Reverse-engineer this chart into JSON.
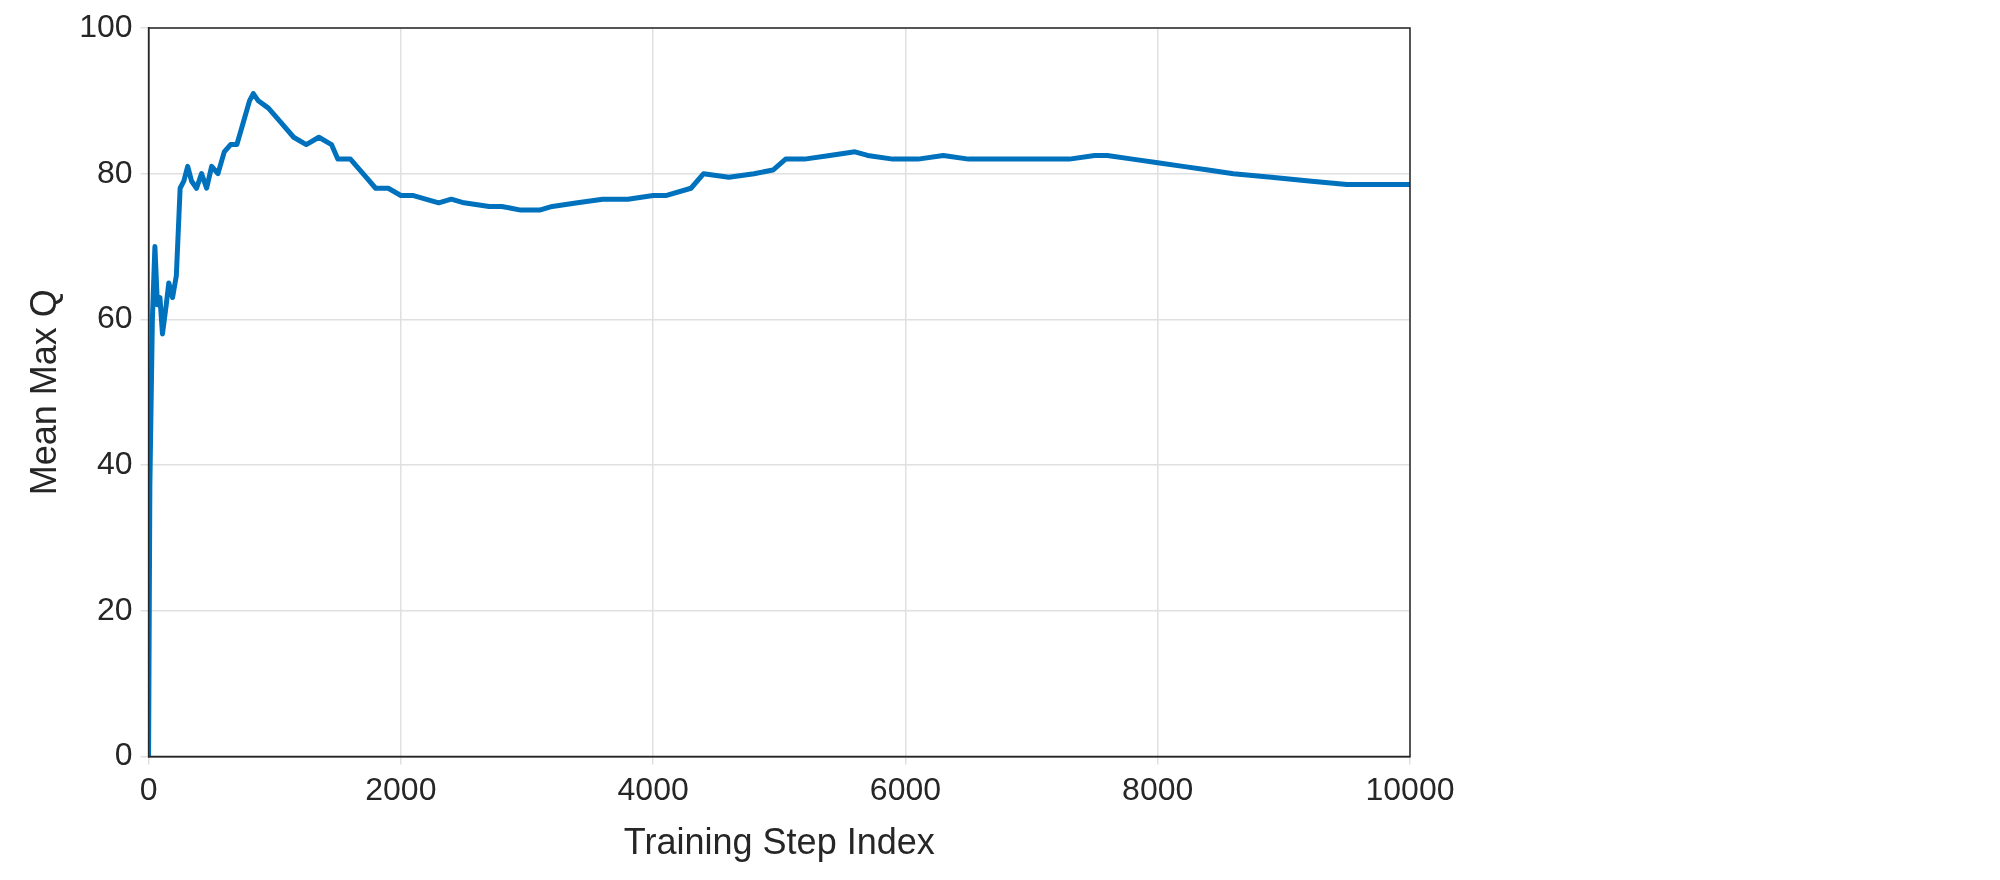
{
  "chart_data": {
    "type": "line",
    "xlabel": "Training Step Index",
    "ylabel": "Mean Max Q",
    "xlim": [
      0,
      10000
    ],
    "xticks": [
      0,
      2000,
      4000,
      6000,
      8000,
      10000
    ],
    "ylim": [
      0,
      100
    ],
    "yticks": [
      0,
      20,
      40,
      60,
      80,
      100
    ],
    "grid": true,
    "line_style": "solid",
    "marker": "none",
    "series": [
      {
        "color": "#0072bd",
        "x": [
          0,
          10,
          30,
          50,
          70,
          90,
          110,
          140,
          160,
          190,
          220,
          250,
          280,
          310,
          340,
          380,
          420,
          460,
          500,
          550,
          600,
          650,
          700,
          750,
          800,
          830,
          870,
          950,
          1050,
          1150,
          1250,
          1350,
          1450,
          1500,
          1600,
          1700,
          1800,
          1900,
          2000,
          2100,
          2300,
          2400,
          2500,
          2700,
          2800,
          2950,
          3100,
          3200,
          3400,
          3600,
          3800,
          4000,
          4100,
          4300,
          4400,
          4600,
          4800,
          4950,
          5050,
          5200,
          5400,
          5600,
          5700,
          5900,
          6100,
          6300,
          6500,
          6700,
          6900,
          7100,
          7300,
          7500,
          7600,
          7800,
          8000,
          8200,
          8400,
          8600,
          8900,
          9200,
          9500,
          9800,
          10000
        ],
        "values": [
          0,
          37,
          60,
          70,
          62,
          63,
          58,
          62,
          65,
          63,
          66,
          78,
          79,
          81,
          79,
          78,
          80,
          78,
          81,
          80,
          83,
          84,
          84,
          87,
          90,
          91,
          90,
          89,
          87,
          85,
          84,
          85,
          84,
          82,
          82,
          80,
          78,
          78,
          77,
          77,
          76,
          76.5,
          76,
          75.5,
          75.5,
          75,
          75,
          75.5,
          76,
          76.5,
          76.5,
          77,
          77,
          78,
          80,
          79.5,
          80,
          80.5,
          82,
          82,
          82.5,
          83,
          82.5,
          82,
          82,
          82.5,
          82,
          82,
          82,
          82,
          82,
          82.5,
          82.5,
          82,
          81.5,
          81,
          80.5,
          80,
          79.5,
          79,
          78.5,
          78.5,
          78.5
        ]
      }
    ]
  }
}
